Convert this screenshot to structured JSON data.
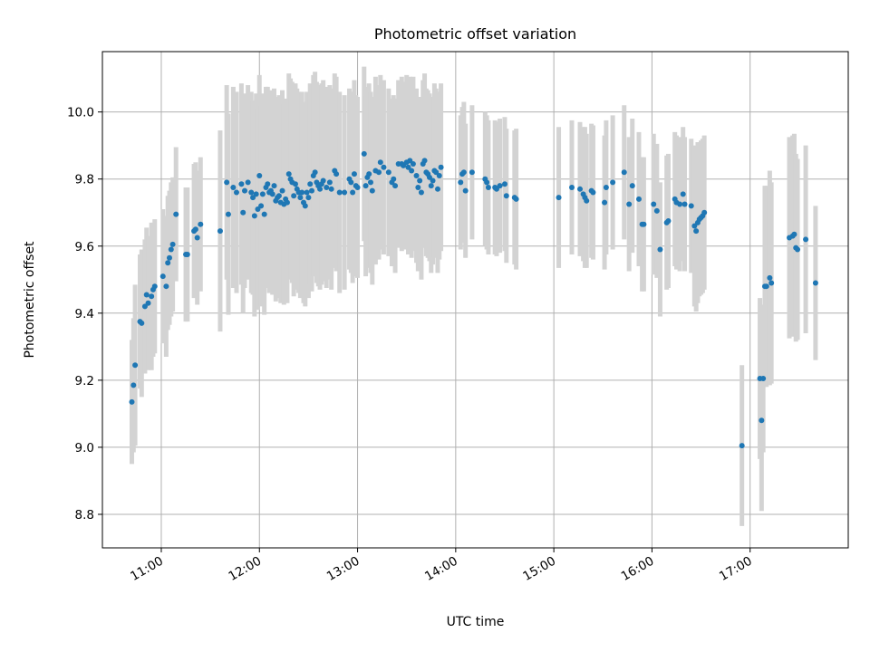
{
  "chart_data": {
    "type": "scatter",
    "title": "Photometric offset variation",
    "xlabel": "UTC time",
    "ylabel": "Photometric offset",
    "x_unit": "UTC time of day",
    "xlim": [
      "10:24",
      "18:00"
    ],
    "ylim": [
      8.7,
      10.18
    ],
    "x_ticks": [
      "11:00",
      "12:00",
      "13:00",
      "14:00",
      "15:00",
      "16:00",
      "17:00"
    ],
    "y_ticks": [
      8.8,
      9.0,
      9.2,
      9.4,
      9.6,
      9.8,
      10.0
    ],
    "y_tick_labels": [
      "8.8",
      "9.0",
      "9.2",
      "9.4",
      "9.6",
      "9.8",
      "10.0"
    ],
    "grid": true,
    "legend": "none",
    "colors": {
      "points": "#1f77b4",
      "error_bars": "#d3d3d3",
      "grid": "#b0b0b0"
    },
    "series": [
      {
        "kind": "points with vertical error bars",
        "points": [
          [
            "10:42",
            9.135,
            0.185
          ],
          [
            "10:43",
            9.185,
            0.2
          ],
          [
            "10:44",
            9.245,
            0.24
          ],
          [
            "10:47",
            9.375,
            0.2
          ],
          [
            "10:48",
            9.37,
            0.22
          ],
          [
            "10:50",
            9.42,
            0.2
          ],
          [
            "10:51",
            9.455,
            0.2
          ],
          [
            "10:52",
            9.43,
            0.2
          ],
          [
            "10:54",
            9.45,
            0.22
          ],
          [
            "10:55",
            9.47,
            0.2
          ],
          [
            "10:56",
            9.48,
            0.2
          ],
          [
            "11:01",
            9.51,
            0.2
          ],
          [
            "11:03",
            9.48,
            0.21
          ],
          [
            "11:04",
            9.55,
            0.2
          ],
          [
            "11:05",
            9.565,
            0.2
          ],
          [
            "11:06",
            9.59,
            0.2
          ],
          [
            "11:07",
            9.605,
            0.2
          ],
          [
            "11:09",
            9.695,
            0.2
          ],
          [
            "11:15",
            9.575,
            0.2
          ],
          [
            "11:16",
            9.575,
            0.2
          ],
          [
            "11:20",
            9.645,
            0.2
          ],
          [
            "11:21",
            9.65,
            0.2
          ],
          [
            "11:22",
            9.625,
            0.2
          ],
          [
            "11:24",
            9.665,
            0.2
          ],
          [
            "11:36",
            9.645,
            0.3
          ],
          [
            "11:40",
            9.79,
            0.29
          ],
          [
            "11:41",
            9.695,
            0.3
          ],
          [
            "11:44",
            9.775,
            0.3
          ],
          [
            "11:46",
            9.76,
            0.3
          ],
          [
            "11:49",
            9.785,
            0.3
          ],
          [
            "11:50",
            9.7,
            0.3
          ],
          [
            "11:51",
            9.765,
            0.29
          ],
          [
            "11:53",
            9.79,
            0.29
          ],
          [
            "11:55",
            9.76,
            0.3
          ],
          [
            "11:56",
            9.745,
            0.29
          ],
          [
            "11:57",
            9.69,
            0.3
          ],
          [
            "11:58",
            9.755,
            0.3
          ],
          [
            "11:59",
            9.71,
            0.3
          ],
          [
            "12:00",
            9.81,
            0.3
          ],
          [
            "12:01",
            9.72,
            0.3
          ],
          [
            "12:02",
            9.755,
            0.3
          ],
          [
            "12:03",
            9.695,
            0.3
          ],
          [
            "12:04",
            9.775,
            0.3
          ],
          [
            "12:05",
            9.785,
            0.29
          ],
          [
            "12:06",
            9.76,
            0.3
          ],
          [
            "12:07",
            9.765,
            0.3
          ],
          [
            "12:08",
            9.755,
            0.3
          ],
          [
            "12:09",
            9.78,
            0.29
          ],
          [
            "12:10",
            9.735,
            0.3
          ],
          [
            "12:11",
            9.745,
            0.3
          ],
          [
            "12:12",
            9.75,
            0.3
          ],
          [
            "12:13",
            9.73,
            0.3
          ],
          [
            "12:14",
            9.765,
            0.3
          ],
          [
            "12:15",
            9.725,
            0.3
          ],
          [
            "12:16",
            9.74,
            0.3
          ],
          [
            "12:17",
            9.73,
            0.3
          ],
          [
            "12:18",
            9.815,
            0.3
          ],
          [
            "12:19",
            9.8,
            0.3
          ],
          [
            "12:20",
            9.79,
            0.3
          ],
          [
            "12:21",
            9.75,
            0.3
          ],
          [
            "12:22",
            9.785,
            0.3
          ],
          [
            "12:23",
            9.77,
            0.3
          ],
          [
            "12:24",
            9.76,
            0.3
          ],
          [
            "12:25",
            9.745,
            0.3
          ],
          [
            "12:26",
            9.76,
            0.3
          ],
          [
            "12:27",
            9.73,
            0.3
          ],
          [
            "12:28",
            9.72,
            0.3
          ],
          [
            "12:29",
            9.76,
            0.3
          ],
          [
            "12:30",
            9.745,
            0.3
          ],
          [
            "12:31",
            9.785,
            0.3
          ],
          [
            "12:32",
            9.765,
            0.3
          ],
          [
            "12:33",
            9.81,
            0.3
          ],
          [
            "12:34",
            9.82,
            0.3
          ],
          [
            "12:35",
            9.79,
            0.3
          ],
          [
            "12:36",
            9.78,
            0.3
          ],
          [
            "12:37",
            9.77,
            0.3
          ],
          [
            "12:38",
            9.785,
            0.3
          ],
          [
            "12:39",
            9.795,
            0.3
          ],
          [
            "12:41",
            9.775,
            0.3
          ],
          [
            "12:43",
            9.79,
            0.29
          ],
          [
            "12:44",
            9.77,
            0.3
          ],
          [
            "12:46",
            9.825,
            0.29
          ],
          [
            "12:47",
            9.815,
            0.29
          ],
          [
            "12:49",
            9.76,
            0.3
          ],
          [
            "12:52",
            9.76,
            0.29
          ],
          [
            "12:55",
            9.8,
            0.27
          ],
          [
            "12:56",
            9.79,
            0.27
          ],
          [
            "12:57",
            9.76,
            0.27
          ],
          [
            "12:58",
            9.815,
            0.28
          ],
          [
            "12:59",
            9.78,
            0.27
          ],
          [
            "13:00",
            9.775,
            0.27
          ],
          [
            "13:04",
            9.875,
            0.26
          ],
          [
            "13:05",
            9.78,
            0.27
          ],
          [
            "13:06",
            9.805,
            0.27
          ],
          [
            "13:07",
            9.815,
            0.27
          ],
          [
            "13:08",
            9.79,
            0.27
          ],
          [
            "13:09",
            9.765,
            0.28
          ],
          [
            "13:11",
            9.825,
            0.28
          ],
          [
            "13:13",
            9.82,
            0.26
          ],
          [
            "13:14",
            9.85,
            0.26
          ],
          [
            "13:16",
            9.835,
            0.26
          ],
          [
            "13:19",
            9.82,
            0.25
          ],
          [
            "13:21",
            9.79,
            0.25
          ],
          [
            "13:22",
            9.8,
            0.25
          ],
          [
            "13:23",
            9.78,
            0.26
          ],
          [
            "13:25",
            9.845,
            0.25
          ],
          [
            "13:27",
            9.845,
            0.26
          ],
          [
            "13:28",
            9.84,
            0.25
          ],
          [
            "13:30",
            9.85,
            0.26
          ],
          [
            "13:31",
            9.835,
            0.26
          ],
          [
            "13:32",
            9.855,
            0.25
          ],
          [
            "13:33",
            9.825,
            0.26
          ],
          [
            "13:34",
            9.845,
            0.26
          ],
          [
            "13:36",
            9.81,
            0.26
          ],
          [
            "13:37",
            9.775,
            0.25
          ],
          [
            "13:38",
            9.795,
            0.25
          ],
          [
            "13:39",
            9.76,
            0.26
          ],
          [
            "13:40",
            9.845,
            0.25
          ],
          [
            "13:41",
            9.855,
            0.26
          ],
          [
            "13:42",
            9.82,
            0.25
          ],
          [
            "13:43",
            9.815,
            0.25
          ],
          [
            "13:44",
            9.805,
            0.25
          ],
          [
            "13:45",
            9.78,
            0.26
          ],
          [
            "13:46",
            9.795,
            0.25
          ],
          [
            "13:47",
            9.825,
            0.26
          ],
          [
            "13:48",
            9.82,
            0.25
          ],
          [
            "13:49",
            9.77,
            0.25
          ],
          [
            "13:50",
            9.81,
            0.25
          ],
          [
            "13:51",
            9.835,
            0.25
          ],
          [
            "14:03",
            9.79,
            0.2
          ],
          [
            "14:04",
            9.815,
            0.2
          ],
          [
            "14:05",
            9.82,
            0.21
          ],
          [
            "14:06",
            9.765,
            0.2
          ],
          [
            "14:10",
            9.82,
            0.2
          ],
          [
            "14:18",
            9.8,
            0.2
          ],
          [
            "14:19",
            9.79,
            0.2
          ],
          [
            "14:20",
            9.775,
            0.2
          ],
          [
            "14:24",
            9.775,
            0.2
          ],
          [
            "14:25",
            9.77,
            0.2
          ],
          [
            "14:27",
            9.78,
            0.2
          ],
          [
            "14:30",
            9.785,
            0.2
          ],
          [
            "14:31",
            9.75,
            0.2
          ],
          [
            "14:36",
            9.745,
            0.2
          ],
          [
            "14:37",
            9.74,
            0.21
          ],
          [
            "15:03",
            9.745,
            0.21
          ],
          [
            "15:11",
            9.775,
            0.2
          ],
          [
            "15:16",
            9.77,
            0.2
          ],
          [
            "15:18",
            9.755,
            0.2
          ],
          [
            "15:19",
            9.745,
            0.21
          ],
          [
            "15:20",
            9.735,
            0.2
          ],
          [
            "15:23",
            9.765,
            0.2
          ],
          [
            "15:24",
            9.76,
            0.2
          ],
          [
            "15:31",
            9.73,
            0.2
          ],
          [
            "15:32",
            9.775,
            0.2
          ],
          [
            "15:36",
            9.79,
            0.2
          ],
          [
            "15:43",
            9.82,
            0.2
          ],
          [
            "15:46",
            9.725,
            0.2
          ],
          [
            "15:48",
            9.78,
            0.2
          ],
          [
            "15:52",
            9.74,
            0.2
          ],
          [
            "15:54",
            9.665,
            0.2
          ],
          [
            "15:55",
            9.665,
            0.2
          ],
          [
            "16:01",
            9.725,
            0.21
          ],
          [
            "16:03",
            9.705,
            0.2
          ],
          [
            "16:05",
            9.59,
            0.2
          ],
          [
            "16:09",
            9.67,
            0.2
          ],
          [
            "16:10",
            9.675,
            0.2
          ],
          [
            "16:14",
            9.74,
            0.2
          ],
          [
            "16:15",
            9.73,
            0.2
          ],
          [
            "16:17",
            9.725,
            0.2
          ],
          [
            "16:19",
            9.755,
            0.2
          ],
          [
            "16:20",
            9.725,
            0.2
          ],
          [
            "16:24",
            9.72,
            0.2
          ],
          [
            "16:26",
            9.66,
            0.24
          ],
          [
            "16:27",
            9.645,
            0.24
          ],
          [
            "16:28",
            9.67,
            0.24
          ],
          [
            "16:29",
            9.68,
            0.23
          ],
          [
            "16:30",
            9.685,
            0.23
          ],
          [
            "16:31",
            9.69,
            0.23
          ],
          [
            "16:32",
            9.7,
            0.23
          ],
          [
            "16:55",
            9.005,
            0.24
          ],
          [
            "17:06",
            9.205,
            0.24
          ],
          [
            "17:07",
            9.08,
            0.27
          ],
          [
            "17:08",
            9.205,
            0.22
          ],
          [
            "17:09",
            9.48,
            0.3
          ],
          [
            "17:10",
            9.48,
            0.3
          ],
          [
            "17:12",
            9.505,
            0.32
          ],
          [
            "17:13",
            9.49,
            0.3
          ],
          [
            "17:24",
            9.625,
            0.3
          ],
          [
            "17:26",
            9.63,
            0.3
          ],
          [
            "17:27",
            9.635,
            0.3
          ],
          [
            "17:28",
            9.595,
            0.28
          ],
          [
            "17:29",
            9.59,
            0.27
          ],
          [
            "17:34",
            9.62,
            0.28
          ],
          [
            "17:40",
            9.49,
            0.23
          ]
        ]
      }
    ]
  }
}
